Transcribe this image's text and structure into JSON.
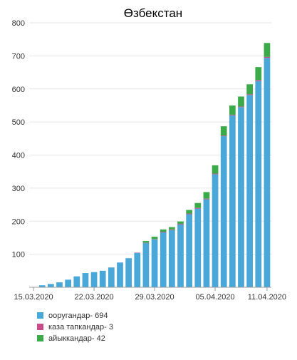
{
  "colors": {
    "background": "#ffffff",
    "grid": "#e6e6e6",
    "axis": "#999999",
    "text": "#333333"
  },
  "chart_data": {
    "type": "bar",
    "stacked": true,
    "title": "Өзбекстан",
    "xlabel": "",
    "ylabel": "",
    "ylim": [
      0,
      800
    ],
    "yticks": [
      100,
      200,
      300,
      400,
      500,
      600,
      700,
      800
    ],
    "grid": true,
    "legend_position": "bottom-left",
    "x_tick_labels": [
      "15.03.2020",
      "22.03.2020",
      "29.03.2020",
      "05.04.2020",
      "11.04.2020"
    ],
    "x_tick_positions": [
      0,
      7,
      14,
      21,
      27
    ],
    "categories": [
      "15.03.2020",
      "16.03.2020",
      "17.03.2020",
      "18.03.2020",
      "19.03.2020",
      "20.03.2020",
      "21.03.2020",
      "22.03.2020",
      "23.03.2020",
      "24.03.2020",
      "25.03.2020",
      "26.03.2020",
      "27.03.2020",
      "28.03.2020",
      "29.03.2020",
      "30.03.2020",
      "31.03.2020",
      "01.04.2020",
      "02.04.2020",
      "03.04.2020",
      "04.04.2020",
      "05.04.2020",
      "06.04.2020",
      "07.04.2020",
      "08.04.2020",
      "09.04.2020",
      "10.04.2020",
      "11.04.2020"
    ],
    "series": [
      {
        "name": "ооругандар",
        "total": "694",
        "color": "#4aa8d8",
        "values": [
          1,
          6,
          10,
          15,
          23,
          33,
          43,
          46,
          50,
          60,
          75,
          88,
          104,
          134,
          145,
          166,
          173,
          190,
          221,
          238,
          266,
          342,
          457,
          520,
          545,
          582,
          624,
          694
        ]
      },
      {
        "name": "каза тапкандар",
        "total": "3",
        "color": "#c84b8a",
        "values": [
          0,
          0,
          0,
          0,
          0,
          0,
          0,
          0,
          0,
          0,
          0,
          0,
          1,
          1,
          1,
          2,
          2,
          2,
          2,
          2,
          2,
          2,
          2,
          2,
          2,
          2,
          3,
          3
        ]
      },
      {
        "name": "айыккандар",
        "total": "42",
        "color": "#3aab48",
        "values": [
          0,
          0,
          0,
          0,
          0,
          0,
          0,
          0,
          0,
          0,
          0,
          0,
          0,
          5,
          7,
          7,
          7,
          7,
          11,
          15,
          20,
          25,
          28,
          28,
          30,
          30,
          39,
          42
        ]
      }
    ]
  }
}
